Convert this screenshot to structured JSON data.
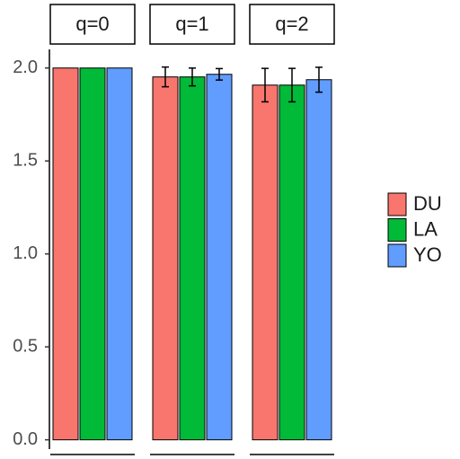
{
  "chart_data": {
    "type": "bar",
    "facets": [
      "q=0",
      "q=1",
      "q=2"
    ],
    "series": [
      {
        "name": "DU",
        "color": "#F8766D",
        "values": [
          2.0,
          1.952,
          1.908
        ],
        "errors": [
          null,
          0.053,
          0.09
        ]
      },
      {
        "name": "LA",
        "color": "#00BA38",
        "values": [
          2.0,
          1.952,
          1.908
        ],
        "errors": [
          null,
          0.048,
          0.09
        ]
      },
      {
        "name": "YO",
        "color": "#619CFF",
        "values": [
          2.0,
          1.966,
          1.937
        ],
        "errors": [
          null,
          0.031,
          0.067
        ]
      }
    ],
    "ylim": [
      -0.05,
      2.1
    ],
    "yticks": [
      {
        "value": 0,
        "label": "0.0"
      },
      0.5,
      {
        "value": 1,
        "label": "1.0"
      },
      1.5,
      {
        "value": 2,
        "label": "2.0"
      }
    ]
  }
}
